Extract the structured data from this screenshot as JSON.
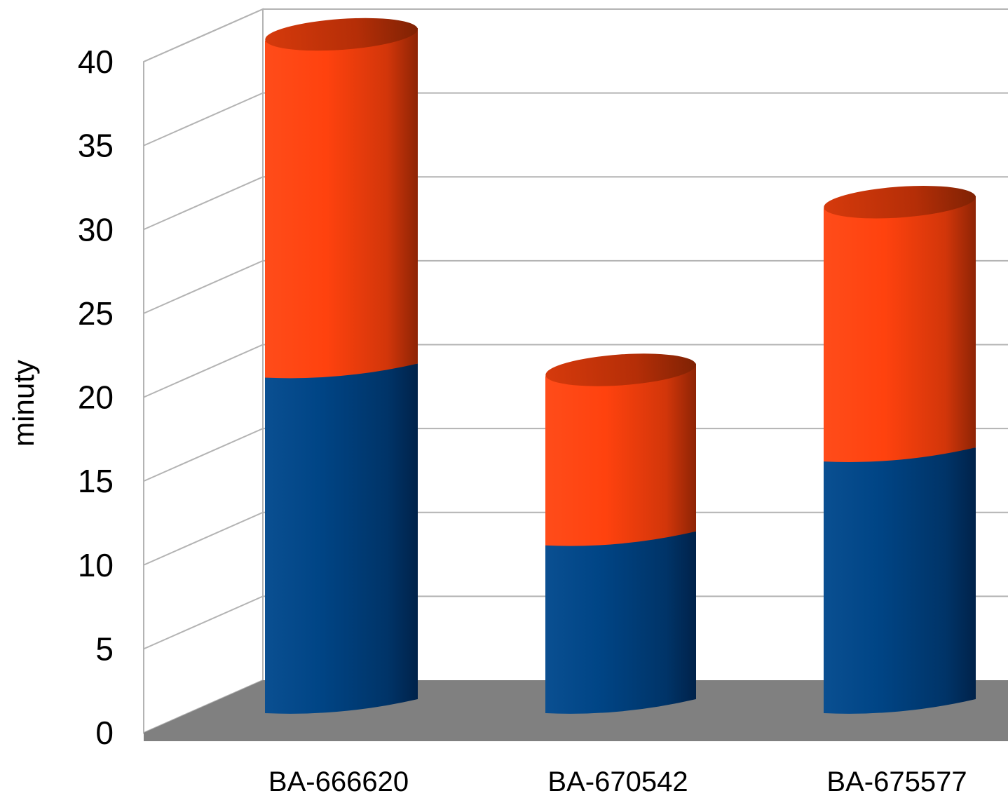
{
  "chart_data": {
    "type": "bar",
    "stacked": true,
    "three_d": true,
    "bar_shape": "cylinder",
    "categories": [
      "BA-666620",
      "BA-670542",
      "BA-675577"
    ],
    "series": [
      {
        "color": "#004586",
        "values": [
          20,
          10,
          15
        ]
      },
      {
        "color": "#ff420e",
        "values": [
          20,
          10,
          15
        ]
      }
    ],
    "xlabel": "",
    "ylabel": "minuty",
    "ylim": [
      0,
      40
    ],
    "yticks": [
      0,
      5,
      10,
      15,
      20,
      25,
      30,
      35,
      40
    ],
    "grid": true,
    "legend": "none",
    "floor_color": "#808080"
  }
}
